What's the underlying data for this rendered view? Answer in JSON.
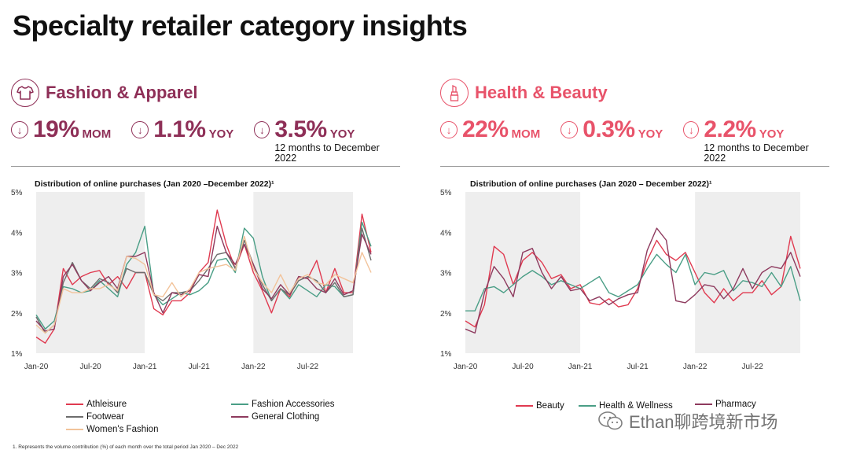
{
  "page_title": "Specialty retailer category insights",
  "footnote": "1. Represents the volume contribution (%) of each month over the total period Jan 2020 – Dec 2022",
  "watermark": "Ethan聊跨境新市场",
  "colors": {
    "fashion": "#8e2f57",
    "beauty": "#e8536a",
    "red": "#e03a50",
    "teal": "#4a9e86",
    "grey": "#6d6d6d",
    "plum": "#8e3a5e",
    "peach": "#f2c39a",
    "shade": "#eeeeee"
  },
  "fashion": {
    "title": "Fashion & Apparel",
    "icon": "tshirt-icon",
    "kpis": [
      {
        "value": "19%",
        "unit": "MOM",
        "icon": "down-arrow-icon"
      },
      {
        "value": "1.1%",
        "unit": "YOY",
        "icon": "down-arrow-icon"
      },
      {
        "value": "3.5%",
        "unit": "YOY",
        "sub": "12 months to December 2022",
        "icon": "down-arrow-icon"
      }
    ]
  },
  "beauty": {
    "title": "Health & Beauty",
    "icon": "lipstick-icon",
    "kpis": [
      {
        "value": "22%",
        "unit": "MOM",
        "icon": "down-arrow-icon"
      },
      {
        "value": "0.3%",
        "unit": "YOY",
        "icon": "down-arrow-icon"
      },
      {
        "value": "2.2%",
        "unit": "YOY",
        "sub": "12 months to December 2022",
        "icon": "down-arrow-icon"
      }
    ]
  },
  "chart_data": [
    {
      "type": "line",
      "title": "Distribution of online purchases (Jan 2020 –December 2022)¹",
      "ylim": [
        1,
        5
      ],
      "yticks": [
        "1%",
        "2%",
        "3%",
        "4%",
        "5%"
      ],
      "xticks": [
        {
          "label": "Jan-20",
          "index": 0
        },
        {
          "label": "Jul-20",
          "index": 6
        },
        {
          "label": "Jan-21",
          "index": 12
        },
        {
          "label": "Jul-21",
          "index": 18
        },
        {
          "label": "Jan-22",
          "index": 24
        },
        {
          "label": "Jul-22",
          "index": 30
        }
      ],
      "shaded_ranges": [
        [
          0,
          12
        ],
        [
          24,
          35
        ]
      ],
      "series": [
        {
          "name": "Athleisure",
          "color": "#e03a50",
          "values": [
            1.4,
            1.25,
            1.6,
            3.1,
            2.7,
            2.9,
            3.0,
            3.05,
            2.7,
            2.9,
            2.6,
            3.0,
            3.0,
            2.1,
            1.95,
            2.3,
            2.3,
            2.5,
            3.0,
            3.25,
            4.55,
            3.7,
            3.1,
            3.7,
            3.0,
            2.55,
            2.0,
            2.6,
            2.4,
            2.9,
            2.85,
            3.3,
            2.5,
            3.1,
            2.5,
            2.5,
            4.45,
            3.5
          ]
        },
        {
          "name": "Fashion Accessories",
          "color": "#4a9e86",
          "values": [
            1.95,
            1.6,
            1.8,
            2.65,
            2.6,
            2.5,
            2.55,
            2.8,
            2.6,
            2.4,
            3.2,
            3.5,
            4.15,
            2.45,
            2.2,
            2.35,
            2.5,
            2.45,
            2.55,
            2.75,
            3.3,
            3.35,
            3.0,
            4.1,
            3.85,
            2.9,
            2.3,
            2.6,
            2.35,
            2.7,
            2.55,
            2.4,
            2.7,
            2.65,
            2.4,
            2.45,
            4.25,
            3.65
          ]
        },
        {
          "name": "Footwear",
          "color": "#6d6d6d",
          "values": [
            1.9,
            1.5,
            1.7,
            2.75,
            3.25,
            2.8,
            2.6,
            2.85,
            2.75,
            2.5,
            3.1,
            3.0,
            3.0,
            2.45,
            2.3,
            2.5,
            2.5,
            2.55,
            2.8,
            3.1,
            3.45,
            3.5,
            3.1,
            3.8,
            3.2,
            2.7,
            2.3,
            2.6,
            2.45,
            2.8,
            2.9,
            2.8,
            2.5,
            2.75,
            2.4,
            2.45,
            4.1,
            3.3
          ]
        },
        {
          "name": "General Clothing",
          "color": "#8e3a5e",
          "values": [
            1.8,
            1.55,
            1.6,
            2.9,
            3.2,
            2.8,
            2.55,
            2.75,
            2.9,
            2.6,
            3.4,
            3.4,
            3.5,
            2.5,
            2.0,
            2.5,
            2.45,
            2.55,
            2.95,
            2.9,
            4.15,
            3.5,
            3.2,
            3.7,
            3.2,
            2.6,
            2.35,
            2.7,
            2.45,
            2.9,
            2.85,
            2.6,
            2.5,
            2.85,
            2.45,
            2.55,
            3.95,
            3.45
          ]
        },
        {
          "name": "Women's Fashion",
          "color": "#f2c39a",
          "values": [
            1.7,
            1.5,
            1.7,
            2.6,
            2.5,
            2.5,
            2.6,
            2.6,
            2.7,
            2.55,
            3.4,
            3.35,
            3.2,
            2.45,
            2.4,
            2.75,
            2.4,
            2.6,
            3.0,
            3.1,
            3.15,
            3.2,
            3.05,
            3.9,
            3.1,
            2.75,
            2.5,
            2.95,
            2.5,
            2.85,
            2.95,
            2.75,
            2.7,
            2.95,
            2.85,
            2.75,
            3.5,
            3.0
          ]
        }
      ],
      "legend": [
        "Athleisure",
        "Fashion Accessories",
        "Footwear",
        "General Clothing",
        "Women's Fashion"
      ]
    },
    {
      "type": "line",
      "title": "Distribution of online purchases (Jan 2020 – December 2022)¹",
      "ylim": [
        1,
        5
      ],
      "yticks": [
        "1%",
        "2%",
        "3%",
        "4%",
        "5%"
      ],
      "xticks": [
        {
          "label": "Jan-20",
          "index": 0
        },
        {
          "label": "Jul-20",
          "index": 6
        },
        {
          "label": "Jan-21",
          "index": 12
        },
        {
          "label": "Jul-21",
          "index": 18
        },
        {
          "label": "Jan-22",
          "index": 24
        },
        {
          "label": "Jul-22",
          "index": 30
        }
      ],
      "shaded_ranges": [
        [
          0,
          12
        ],
        [
          24,
          35
        ]
      ],
      "series": [
        {
          "name": "Beauty",
          "color": "#e03a50",
          "values": [
            1.8,
            1.65,
            2.2,
            3.65,
            3.45,
            2.7,
            3.3,
            3.5,
            3.25,
            2.85,
            2.95,
            2.6,
            2.7,
            2.25,
            2.2,
            2.35,
            2.15,
            2.2,
            2.6,
            3.3,
            3.8,
            3.45,
            3.3,
            3.5,
            3.0,
            2.5,
            2.25,
            2.6,
            2.3,
            2.5,
            2.5,
            2.8,
            2.45,
            2.65,
            3.9,
            3.1
          ]
        },
        {
          "name": "Health & Wellness",
          "color": "#4a9e86",
          "values": [
            2.05,
            2.05,
            2.6,
            2.65,
            2.5,
            2.7,
            2.9,
            3.05,
            2.9,
            2.7,
            2.8,
            2.7,
            2.6,
            2.75,
            2.9,
            2.5,
            2.4,
            2.55,
            2.7,
            3.1,
            3.45,
            3.2,
            3.0,
            3.45,
            2.7,
            3.0,
            2.95,
            3.05,
            2.55,
            2.8,
            2.75,
            2.65,
            3.0,
            2.65,
            3.15,
            2.3
          ]
        },
        {
          "name": "Pharmacy",
          "color": "#8e3a5e",
          "values": [
            1.6,
            1.5,
            2.5,
            3.15,
            2.85,
            2.4,
            3.5,
            3.6,
            3.0,
            2.6,
            2.9,
            2.55,
            2.6,
            2.3,
            2.4,
            2.2,
            2.35,
            2.45,
            2.5,
            3.55,
            4.1,
            3.8,
            2.3,
            2.25,
            2.45,
            2.7,
            2.65,
            2.35,
            2.6,
            3.1,
            2.6,
            3.0,
            3.15,
            3.1,
            3.5,
            2.9
          ]
        }
      ],
      "legend": [
        "Beauty",
        "Health & Wellness",
        "Pharmacy"
      ]
    }
  ]
}
